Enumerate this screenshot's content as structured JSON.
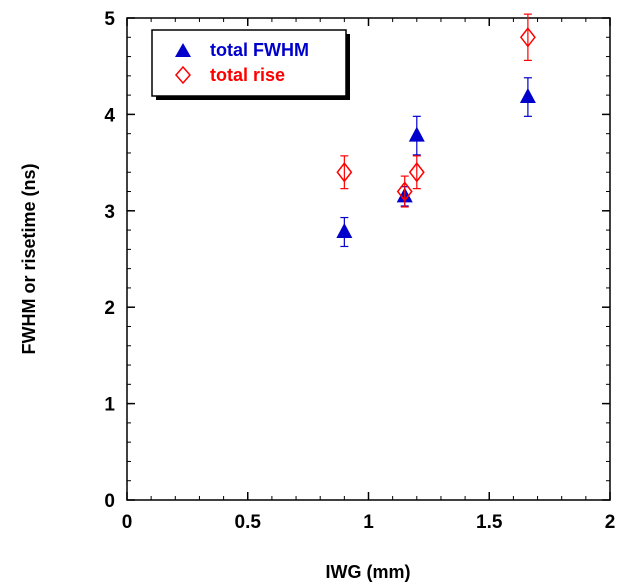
{
  "chart_data": {
    "type": "scatter",
    "title": "",
    "xlabel": "IWG (mm)",
    "ylabel": "FWHM or risetime (ns)",
    "xlim": [
      0,
      2
    ],
    "ylim": [
      0,
      5
    ],
    "x_ticks": [
      0,
      0.5,
      1,
      1.5,
      2
    ],
    "x_tick_labels": [
      "0",
      "0.5",
      "1",
      "1.5",
      "2"
    ],
    "y_ticks": [
      0,
      1,
      2,
      3,
      4,
      5
    ],
    "y_tick_labels": [
      "0",
      "1",
      "2",
      "3",
      "4",
      "5"
    ],
    "grid": false,
    "legend_position": "top-left",
    "series": [
      {
        "name": "total FWHM",
        "marker": "filled-triangle",
        "color": "#0000cc",
        "points": [
          {
            "x": 0.9,
            "y": 2.78,
            "err": 0.15
          },
          {
            "x": 1.15,
            "y": 3.15,
            "err": 0.1
          },
          {
            "x": 1.2,
            "y": 3.78,
            "err": 0.2
          },
          {
            "x": 1.66,
            "y": 4.18,
            "err": 0.2
          }
        ]
      },
      {
        "name": "total rise",
        "marker": "open-diamond",
        "color": "#ff0000",
        "points": [
          {
            "x": 0.9,
            "y": 3.4,
            "err": 0.17
          },
          {
            "x": 1.15,
            "y": 3.2,
            "err": 0.16
          },
          {
            "x": 1.2,
            "y": 3.4,
            "err": 0.17
          },
          {
            "x": 1.66,
            "y": 4.8,
            "err": 0.24
          }
        ]
      }
    ]
  }
}
